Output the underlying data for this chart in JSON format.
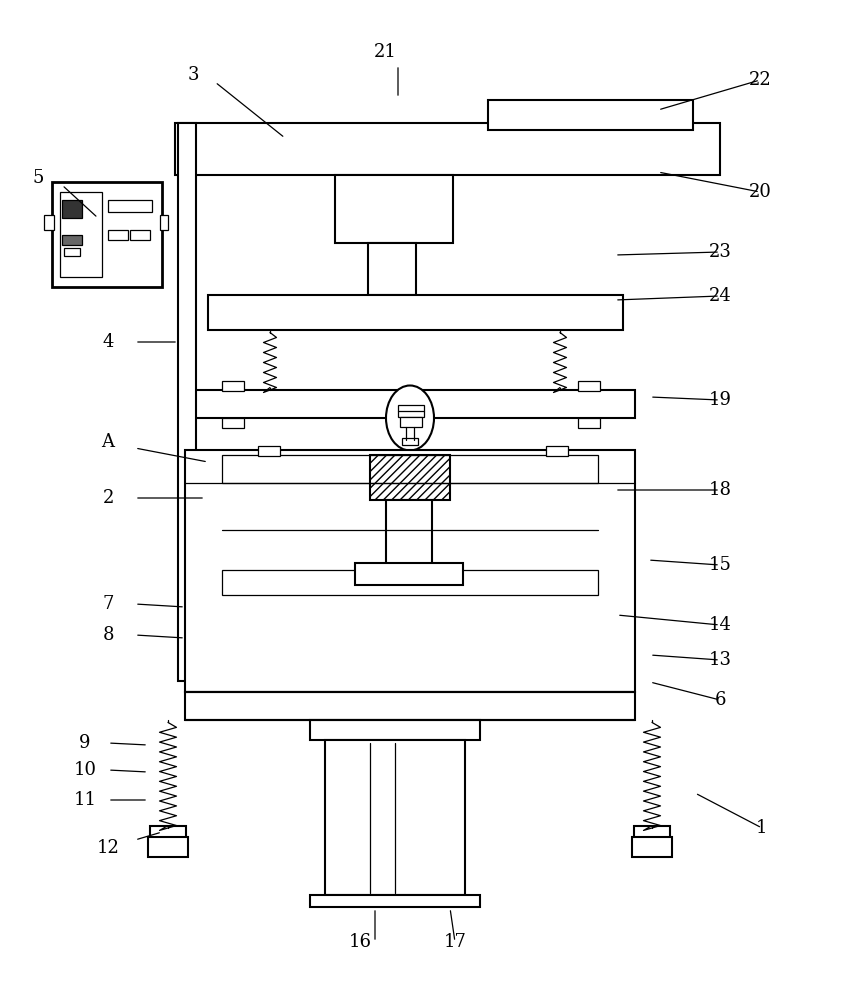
{
  "bg_color": "#ffffff",
  "lc": "#000000",
  "lw": 1.5,
  "tlw": 0.9,
  "annotations": [
    [
      "1",
      762,
      828,
      762,
      828,
      695,
      793
    ],
    [
      "2",
      108,
      498,
      135,
      498,
      205,
      498
    ],
    [
      "3",
      193,
      75,
      215,
      82,
      285,
      138
    ],
    [
      "4",
      108,
      342,
      135,
      342,
      178,
      342
    ],
    [
      "5",
      38,
      178,
      62,
      185,
      98,
      218
    ],
    [
      "6",
      720,
      700,
      720,
      700,
      650,
      682
    ],
    [
      "7",
      108,
      604,
      135,
      604,
      185,
      607
    ],
    [
      "8",
      108,
      635,
      135,
      635,
      185,
      638
    ],
    [
      "9",
      85,
      743,
      108,
      743,
      148,
      745
    ],
    [
      "10",
      85,
      770,
      108,
      770,
      148,
      772
    ],
    [
      "11",
      85,
      800,
      108,
      800,
      148,
      800
    ],
    [
      "12",
      108,
      848,
      135,
      840,
      162,
      832
    ],
    [
      "13",
      720,
      660,
      720,
      660,
      650,
      655
    ],
    [
      "14",
      720,
      625,
      720,
      625,
      617,
      615
    ],
    [
      "15",
      720,
      565,
      720,
      565,
      648,
      560
    ],
    [
      "16",
      360,
      942,
      375,
      942,
      375,
      908
    ],
    [
      "17",
      455,
      942,
      455,
      942,
      450,
      908
    ],
    [
      "18",
      720,
      490,
      720,
      490,
      615,
      490
    ],
    [
      "19",
      720,
      400,
      720,
      400,
      650,
      397
    ],
    [
      "20",
      760,
      192,
      760,
      192,
      658,
      172
    ],
    [
      "21",
      385,
      52,
      398,
      65,
      398,
      98
    ],
    [
      "22",
      760,
      80,
      760,
      80,
      658,
      110
    ],
    [
      "23",
      720,
      252,
      720,
      252,
      615,
      255
    ],
    [
      "24",
      720,
      296,
      720,
      296,
      615,
      300
    ],
    [
      "A",
      108,
      442,
      135,
      448,
      208,
      462
    ]
  ]
}
